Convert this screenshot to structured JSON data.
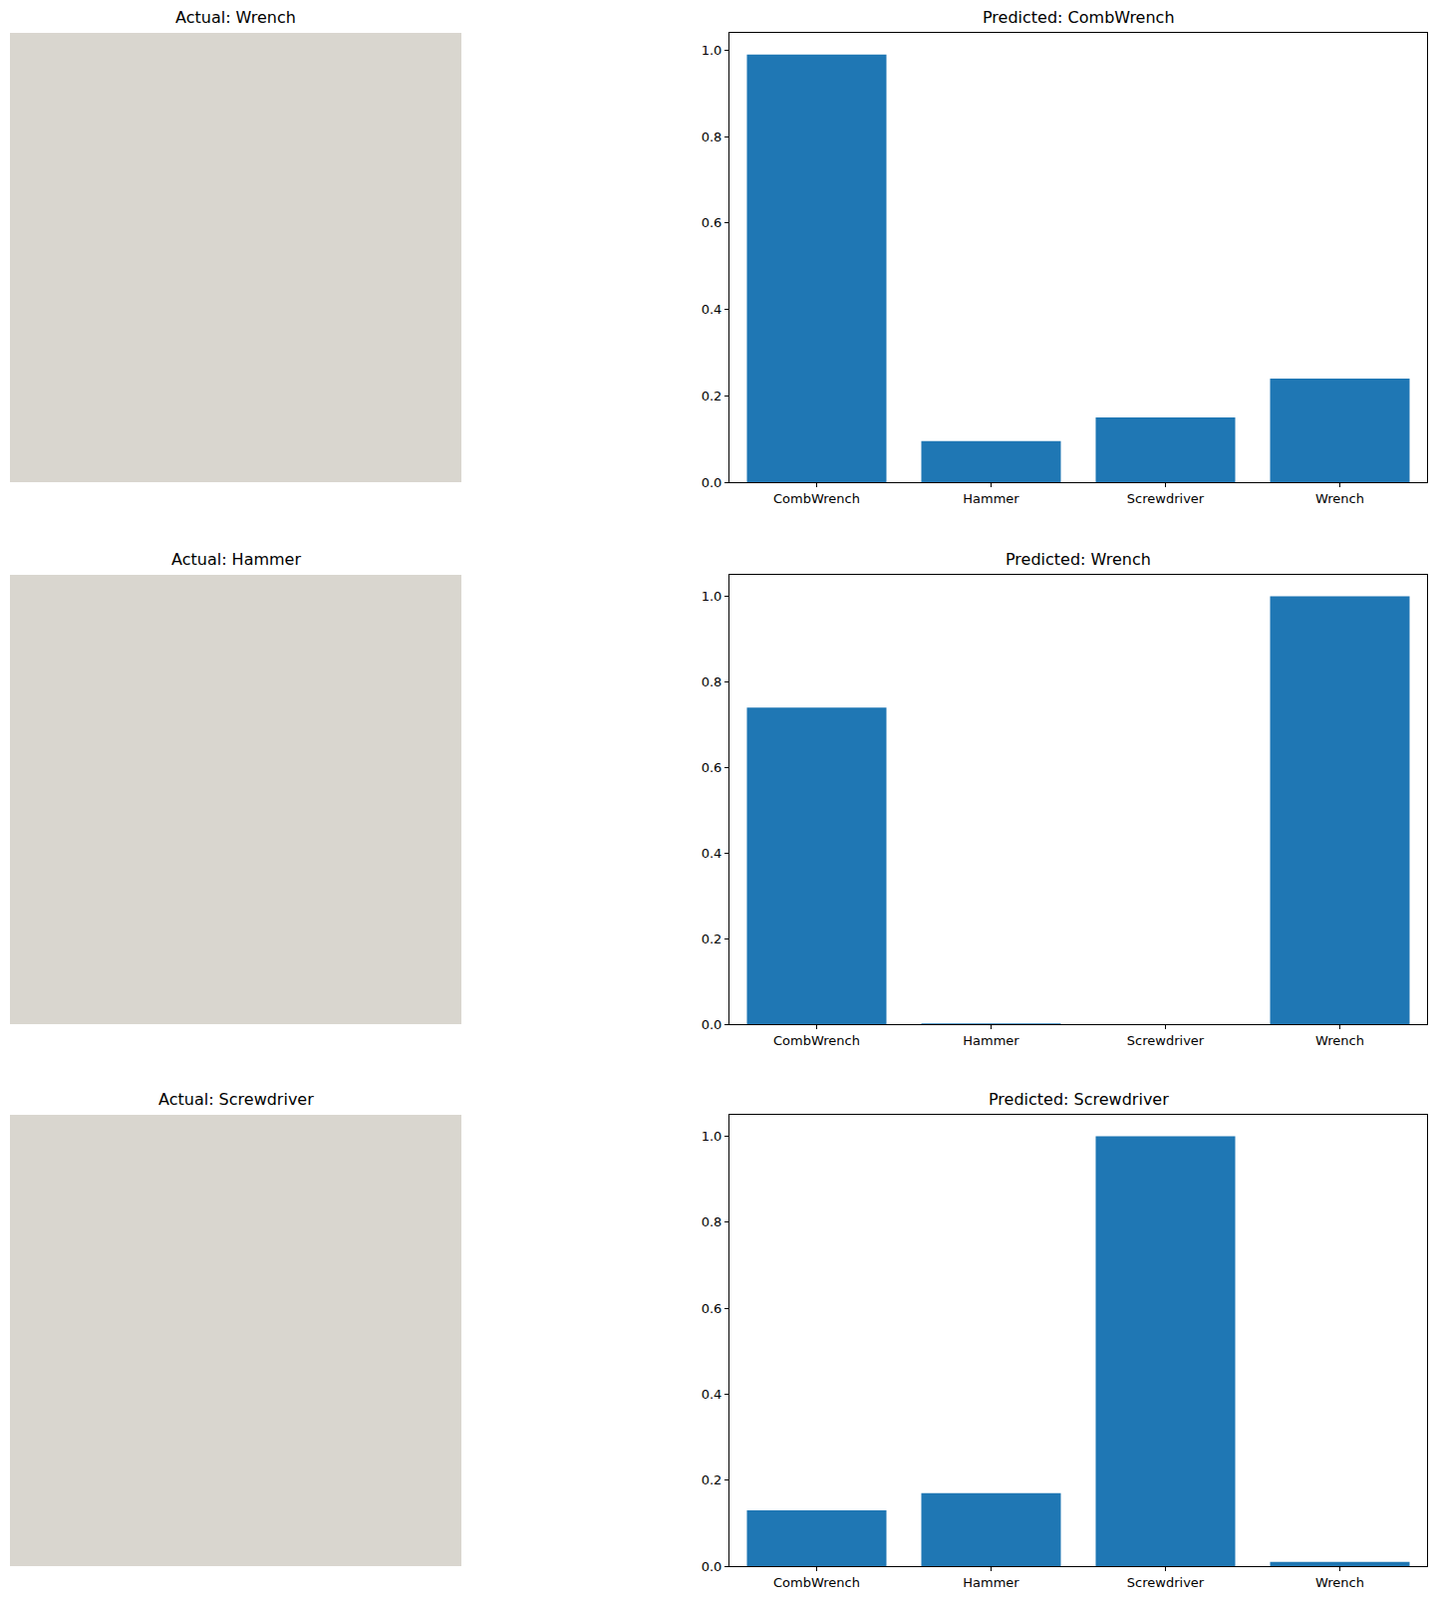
{
  "images": [
    {
      "title": "Actual: Wrench"
    },
    {
      "title": "Actual: Hammer"
    },
    {
      "title": "Actual: Screwdriver"
    }
  ],
  "chart_data": [
    {
      "type": "bar",
      "title": "Predicted: CombWrench",
      "categories": [
        "CombWrench",
        "Hammer",
        "Screwdriver",
        "Wrench"
      ],
      "values": [
        0.99,
        0.095,
        0.15,
        0.24
      ],
      "color": "#1f77b4",
      "ylim": [
        0,
        1.04
      ],
      "yticks": [
        {
          "value": 0,
          "label": "0.0"
        },
        0.2,
        0.4,
        0.6,
        0.8,
        {
          "value": 1,
          "label": "1.0"
        }
      ]
    },
    {
      "type": "bar",
      "title": "Predicted: Wrench",
      "categories": [
        "CombWrench",
        "Hammer",
        "Screwdriver",
        "Wrench"
      ],
      "values": [
        0.74,
        0.002,
        0,
        1.0
      ],
      "color": "#1f77b4",
      "ylim": [
        0,
        1.05
      ],
      "yticks": [
        {
          "value": 0,
          "label": "0.0"
        },
        0.2,
        0.4,
        0.6,
        0.8,
        {
          "value": 1,
          "label": "1.0"
        }
      ]
    },
    {
      "type": "bar",
      "title": "Predicted: Screwdriver",
      "categories": [
        "CombWrench",
        "Hammer",
        "Screwdriver",
        "Wrench"
      ],
      "values": [
        0.13,
        0.17,
        1.0,
        0.01
      ],
      "color": "#1f77b4",
      "ylim": [
        0,
        1.05
      ],
      "yticks": [
        {
          "value": 0,
          "label": "0.0"
        },
        0.2,
        0.4,
        0.6,
        0.8,
        {
          "value": 1,
          "label": "1.0"
        }
      ]
    }
  ]
}
